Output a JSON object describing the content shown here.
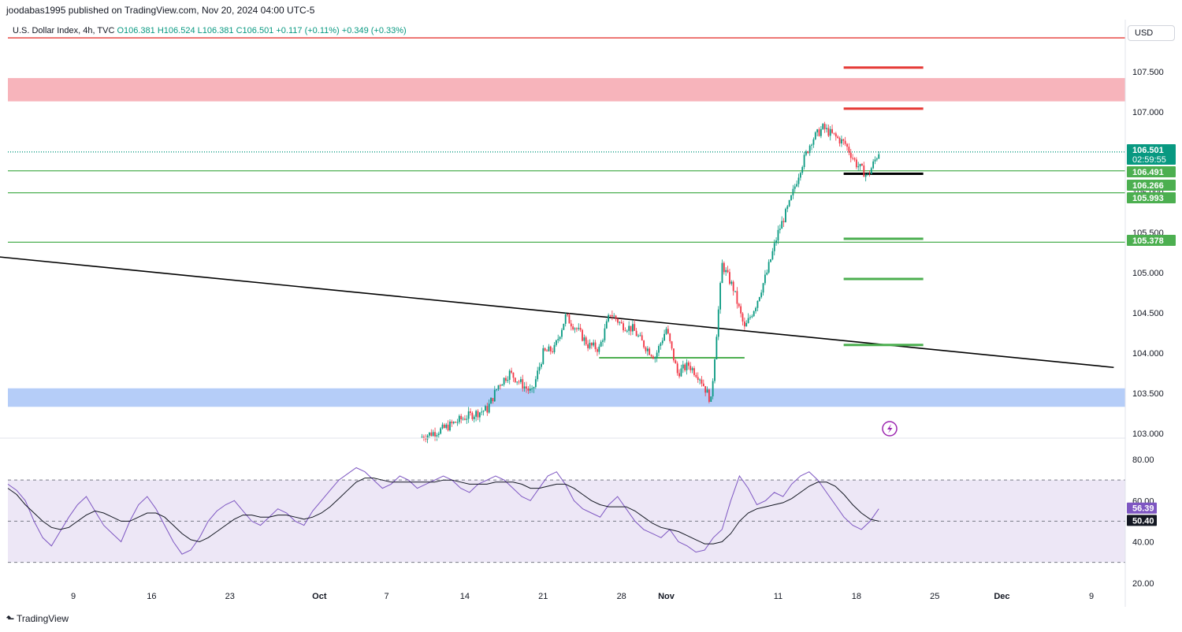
{
  "header": {
    "published": "joodabas1995 published on TradingView.com, Nov 20, 2024 04:00 UTC-5",
    "symbol": "U.S. Dollar Index, 4h, TVC",
    "open": "O106.381",
    "high": "H106.524",
    "low": "L106.381",
    "close": "C106.501",
    "change": "+0.117 (+0.11%)",
    "change2": "+0.349 (+0.33%)"
  },
  "currency": "USD",
  "footer": {
    "brand": "TradingView"
  },
  "colors": {
    "up": "#089981",
    "down": "#f23645",
    "support_line": "#4caf50",
    "resistance_line": "#e53935",
    "trend_line": "#000000",
    "supply_zone": "#f7b4bb",
    "demand_zone": "#b5cdf8",
    "rsi_line": "#7e57c2",
    "rsi_ma": "#131722",
    "rsi_band": "#ede7f6"
  },
  "chart_data": [
    {
      "type": "candlestick",
      "title": "U.S. Dollar Index, 4h, TVC",
      "y_range": [
        102.95,
        107.95
      ],
      "y_ticks": [
        "107.500",
        "107.000",
        "106.500",
        "106.000",
        "105.500",
        "105.000",
        "104.500",
        "104.000",
        "103.500",
        "103.000"
      ],
      "x_ticks": [
        "9",
        "16",
        "23",
        "Oct",
        "7",
        "14",
        "21",
        "28",
        "Nov",
        "11",
        "18",
        "25",
        "Dec",
        "9"
      ],
      "price_labels": [
        {
          "value": "106.501",
          "sub": "02:59:55",
          "color": "#089981"
        },
        {
          "value": "106.491",
          "color": "#4caf50"
        },
        {
          "value": "106.266",
          "color": "#4caf50"
        },
        {
          "value": "105.993",
          "color": "#4caf50"
        },
        {
          "value": "105.378",
          "color": "#4caf50"
        }
      ],
      "horizontal_lines": [
        {
          "price": 107.92,
          "color": "#e53935",
          "label": ""
        },
        {
          "price": 106.501,
          "color": "#089981",
          "style": "dotted"
        },
        {
          "price": 106.266,
          "color": "#4caf50"
        },
        {
          "price": 105.993,
          "color": "#4caf50"
        },
        {
          "price": 105.378,
          "color": "#4caf50"
        }
      ],
      "zones": [
        {
          "from": 107.13,
          "to": 107.42,
          "kind": "supply"
        },
        {
          "from": 103.33,
          "to": 103.56,
          "kind": "demand"
        }
      ],
      "target_levels": [
        {
          "price": 107.55,
          "color": "#e53935"
        },
        {
          "price": 107.04,
          "color": "#e53935"
        },
        {
          "price": 106.23,
          "color": "#000000"
        },
        {
          "price": 105.42,
          "color": "#4caf50"
        },
        {
          "price": 104.92,
          "color": "#4caf50"
        },
        {
          "price": 104.1,
          "color": "#4caf50"
        }
      ],
      "trend_line": {
        "from": {
          "date": "Sep 2",
          "price": 105.2
        },
        "to": {
          "date": "Dec 11",
          "price": 103.82
        }
      },
      "support_segment": {
        "price": 103.94,
        "from": "Oct 26",
        "to": "Nov 8"
      },
      "price_path": [
        {
          "date": "Oct 10",
          "close": 102.95
        },
        {
          "date": "Oct 12",
          "close": 103.05
        },
        {
          "date": "Oct 14",
          "close": 103.2
        },
        {
          "date": "Oct 16",
          "close": 103.3
        },
        {
          "date": "Oct 17",
          "close": 103.6
        },
        {
          "date": "Oct 18",
          "close": 103.75
        },
        {
          "date": "Oct 20",
          "close": 103.5
        },
        {
          "date": "Oct 21",
          "close": 104.0
        },
        {
          "date": "Oct 22",
          "close": 104.05
        },
        {
          "date": "Oct 23",
          "close": 104.45
        },
        {
          "date": "Oct 24",
          "close": 104.3
        },
        {
          "date": "Oct 25",
          "close": 104.1
        },
        {
          "date": "Oct 26",
          "close": 104.05
        },
        {
          "date": "Oct 27",
          "close": 104.5
        },
        {
          "date": "Oct 28",
          "close": 104.35
        },
        {
          "date": "Oct 29",
          "close": 104.3
        },
        {
          "date": "Oct 30",
          "close": 104.1
        },
        {
          "date": "Oct 31",
          "close": 103.95
        },
        {
          "date": "Nov 1",
          "close": 104.3
        },
        {
          "date": "Nov 2",
          "close": 103.75
        },
        {
          "date": "Nov 3",
          "close": 103.85
        },
        {
          "date": "Nov 4",
          "close": 103.7
        },
        {
          "date": "Nov 5",
          "close": 103.4
        },
        {
          "date": "Nov 6",
          "close": 105.1
        },
        {
          "date": "Nov 7",
          "close": 104.8
        },
        {
          "date": "Nov 8",
          "close": 104.3
        },
        {
          "date": "Nov 9",
          "close": 104.6
        },
        {
          "date": "Nov 10",
          "close": 105.0
        },
        {
          "date": "Nov 11",
          "close": 105.5
        },
        {
          "date": "Nov 12",
          "close": 105.85
        },
        {
          "date": "Nov 13",
          "close": 106.3
        },
        {
          "date": "Nov 14",
          "close": 106.65
        },
        {
          "date": "Nov 15",
          "close": 106.8
        },
        {
          "date": "Nov 16",
          "close": 106.7
        },
        {
          "date": "Nov 17",
          "close": 106.6
        },
        {
          "date": "Nov 18",
          "close": 106.35
        },
        {
          "date": "Nov 19",
          "close": 106.2
        },
        {
          "date": "Nov 20",
          "close": 106.501
        }
      ]
    },
    {
      "type": "line",
      "title": "RSI",
      "y_range": [
        20,
        80
      ],
      "y_ticks": [
        "80.00",
        "60.00",
        "40.00",
        "20.00"
      ],
      "band": [
        30,
        70
      ],
      "midline": 50,
      "value_labels": [
        {
          "value": "56.39",
          "color": "#7e57c2"
        },
        {
          "value": "50.40",
          "color": "#131722"
        }
      ],
      "series": [
        {
          "values": [
            68,
            65,
            60,
            50,
            42,
            38,
            45,
            52,
            58,
            62,
            55,
            48,
            44,
            40,
            50,
            58,
            62,
            56,
            48,
            40,
            34,
            36,
            42,
            50,
            55,
            58,
            60,
            55,
            50,
            48,
            52,
            56,
            54,
            50,
            48,
            55,
            60,
            65,
            70,
            73,
            76,
            74,
            70,
            66,
            68,
            72,
            70,
            66,
            68,
            70,
            72,
            70,
            66,
            64,
            68,
            70,
            72,
            70,
            66,
            62,
            60,
            66,
            72,
            74,
            68,
            60,
            56,
            54,
            52,
            58,
            62,
            56,
            50,
            46,
            44,
            42,
            46,
            40,
            38,
            35,
            36,
            42,
            46,
            60,
            72,
            66,
            58,
            60,
            64,
            62,
            68,
            72,
            74,
            70,
            64,
            58,
            52,
            48,
            46,
            50,
            56
          ]
        },
        {
          "values": [
            66,
            63,
            58,
            54,
            50,
            47,
            46,
            47,
            50,
            53,
            55,
            54,
            52,
            50,
            50,
            52,
            54,
            54,
            52,
            48,
            44,
            41,
            40,
            42,
            45,
            48,
            51,
            53,
            53,
            52,
            52,
            53,
            53,
            52,
            51,
            52,
            54,
            57,
            61,
            65,
            69,
            71,
            71,
            70,
            69,
            69,
            69,
            69,
            69,
            69,
            70,
            70,
            69,
            68,
            68,
            68,
            69,
            69,
            69,
            68,
            66,
            66,
            67,
            68,
            68,
            66,
            63,
            60,
            58,
            57,
            57,
            57,
            55,
            52,
            49,
            47,
            46,
            45,
            43,
            41,
            39,
            39,
            40,
            44,
            50,
            54,
            56,
            57,
            58,
            59,
            61,
            64,
            67,
            69,
            69,
            67,
            63,
            58,
            54,
            51,
            50
          ]
        }
      ]
    }
  ]
}
